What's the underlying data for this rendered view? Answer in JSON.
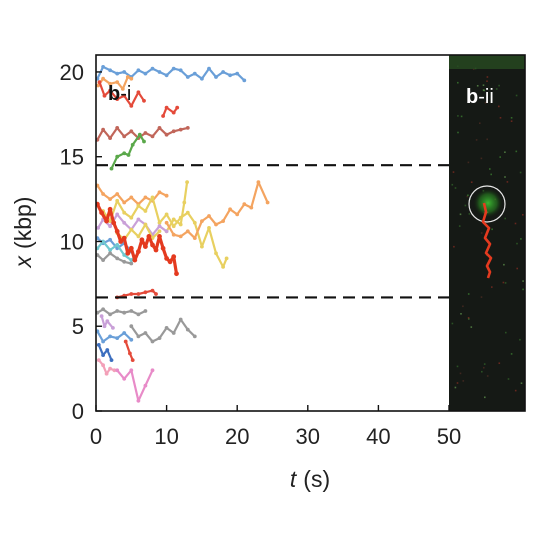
{
  "chart_data": {
    "type": "line",
    "xlabel_var": "t",
    "xlabel_unit": "(s)",
    "ylabel_var": "x",
    "ylabel_unit": "(kbp)",
    "xlim": [
      0,
      50
    ],
    "ylim": [
      0,
      21
    ],
    "x_ticks": [
      "0",
      "10",
      "20",
      "30",
      "40",
      "50"
    ],
    "y_ticks": [
      "0",
      "5",
      "10",
      "15",
      "20"
    ],
    "grid": false,
    "dashed_lines_y": [
      14.5,
      6.7
    ],
    "panels": {
      "left": {
        "bold": "b",
        "rest": "-i"
      },
      "right": {
        "bold": "b",
        "rest": "-ii"
      }
    },
    "series": [
      {
        "color": "#6a9fd8",
        "points": [
          [
            0.2,
            19.6
          ],
          [
            1,
            20.3
          ],
          [
            2,
            20.1
          ],
          [
            3,
            19.9
          ],
          [
            4,
            20.0
          ],
          [
            5,
            19.7
          ],
          [
            6,
            20.1
          ],
          [
            7,
            19.9
          ],
          [
            8,
            20.2
          ],
          [
            9,
            20.0
          ],
          [
            10,
            19.8
          ],
          [
            11,
            20.2
          ],
          [
            12,
            20.1
          ],
          [
            13,
            19.7
          ],
          [
            14,
            19.9
          ],
          [
            15,
            19.6
          ],
          [
            16,
            20.2
          ],
          [
            17,
            19.7
          ],
          [
            18,
            20.0
          ],
          [
            19,
            19.8
          ],
          [
            20,
            19.9
          ],
          [
            21,
            19.5
          ]
        ]
      },
      {
        "color": "#f4a460",
        "points": [
          [
            0.3,
            19.2
          ],
          [
            1,
            19.6
          ],
          [
            2,
            19.3
          ],
          [
            3,
            19.4
          ],
          [
            3.8,
            19.0
          ],
          [
            4.5,
            19.7
          ],
          [
            5,
            19.6
          ]
        ]
      },
      {
        "color": "#e44a3a",
        "points": [
          [
            0.5,
            19.4
          ],
          [
            1.2,
            18.6
          ],
          [
            2,
            18.9
          ],
          [
            3,
            18.4
          ],
          [
            4,
            18.6
          ],
          [
            5,
            18.0
          ],
          [
            6,
            18.8
          ],
          [
            6.8,
            18.3
          ]
        ]
      },
      {
        "color": "#e44a3a",
        "points": [
          [
            9.5,
            17.4
          ],
          [
            10,
            17.9
          ],
          [
            11,
            17.6
          ],
          [
            11.5,
            17.9
          ]
        ]
      },
      {
        "color": "#c1665a",
        "points": [
          [
            0.2,
            16.0
          ],
          [
            1,
            16.6
          ],
          [
            2,
            16.1
          ],
          [
            3,
            16.7
          ],
          [
            4,
            16.2
          ],
          [
            5,
            16.5
          ],
          [
            6,
            16.1
          ],
          [
            7,
            16.4
          ],
          [
            8,
            16.2
          ],
          [
            9,
            16.7
          ],
          [
            10,
            16.3
          ],
          [
            11,
            16.5
          ],
          [
            12,
            16.6
          ],
          [
            13,
            16.7
          ]
        ]
      },
      {
        "color": "#5aa84a",
        "points": [
          [
            2.2,
            14.3
          ],
          [
            3,
            15.0
          ],
          [
            4,
            15.2
          ],
          [
            4.6,
            15.1
          ],
          [
            5.2,
            15.7
          ],
          [
            6.2,
            16.3
          ],
          [
            6.8,
            15.9
          ]
        ]
      },
      {
        "color": "#f4a460",
        "points": [
          [
            0.2,
            13.3
          ],
          [
            1,
            12.8
          ],
          [
            2,
            12.5
          ],
          [
            3,
            12.8
          ],
          [
            4,
            12.3
          ],
          [
            5,
            12.6
          ],
          [
            6,
            12.2
          ],
          [
            7,
            12.6
          ],
          [
            8,
            12.4
          ],
          [
            9,
            12.9
          ],
          [
            10,
            12.7
          ]
        ]
      },
      {
        "color": "#e8d060",
        "points": [
          [
            1,
            11.8
          ],
          [
            2,
            11.2
          ],
          [
            3,
            12.4
          ],
          [
            4,
            11.7
          ],
          [
            5,
            11.4
          ],
          [
            6,
            12.1
          ],
          [
            7,
            11.8
          ],
          [
            8,
            12.6
          ],
          [
            9,
            11.1
          ],
          [
            10,
            11.6
          ],
          [
            11,
            10.9
          ],
          [
            12,
            11.4
          ],
          [
            13,
            11.7
          ],
          [
            14,
            11.1
          ],
          [
            15,
            9.7
          ],
          [
            16,
            10.8
          ],
          [
            17,
            9.3
          ],
          [
            18,
            8.5
          ],
          [
            18.5,
            9.0
          ]
        ]
      },
      {
        "color": "#e8d060",
        "points": [
          [
            10,
            10.6
          ],
          [
            11,
            11.3
          ],
          [
            12,
            11.0
          ],
          [
            12.5,
            12.3
          ],
          [
            12.9,
            13.5
          ]
        ]
      },
      {
        "color": "#f4a460",
        "points": [
          [
            10,
            11.1
          ],
          [
            11,
            10.4
          ],
          [
            12,
            10.3
          ],
          [
            13,
            10.6
          ],
          [
            14,
            10.2
          ],
          [
            15,
            11.2
          ],
          [
            16,
            11.5
          ],
          [
            17,
            11.0
          ],
          [
            18,
            11.2
          ],
          [
            19,
            11.9
          ],
          [
            20,
            11.6
          ],
          [
            21,
            12.2
          ],
          [
            22,
            12.0
          ],
          [
            23,
            13.5
          ],
          [
            24.3,
            12.3
          ]
        ]
      },
      {
        "color": "#c9a0d8",
        "points": [
          [
            0.3,
            10.8
          ],
          [
            1,
            11.3
          ],
          [
            2,
            10.9
          ],
          [
            3,
            11.6
          ],
          [
            4,
            11.1
          ],
          [
            5,
            10.7
          ],
          [
            6,
            11.3
          ],
          [
            7,
            11.0
          ],
          [
            8,
            10.4
          ],
          [
            9,
            10.9
          ],
          [
            10,
            10.6
          ]
        ]
      },
      {
        "color": "#6a9fd8",
        "points": [
          [
            0.2,
            10.2
          ],
          [
            1,
            9.9
          ],
          [
            2,
            10.1
          ],
          [
            3,
            9.6
          ],
          [
            4,
            9.9
          ],
          [
            5,
            9.4
          ]
        ]
      },
      {
        "color": "#70c9d0",
        "points": [
          [
            0.2,
            9.6
          ],
          [
            1,
            10.0
          ],
          [
            2,
            9.5
          ],
          [
            3,
            9.8
          ],
          [
            4,
            9.2
          ],
          [
            5,
            8.9
          ],
          [
            5.5,
            9.1
          ]
        ]
      },
      {
        "color": "#999999",
        "points": [
          [
            0.2,
            9.2
          ],
          [
            1,
            8.9
          ],
          [
            2,
            9.3
          ],
          [
            3,
            9.0
          ],
          [
            4,
            8.8
          ],
          [
            5,
            8.7
          ]
        ]
      },
      {
        "color": "#e8d060",
        "points": [
          [
            3,
            10.5
          ],
          [
            4,
            10.1
          ],
          [
            5,
            10.7
          ],
          [
            6,
            10.3
          ],
          [
            7,
            11.0
          ],
          [
            8,
            10.2
          ],
          [
            9,
            10.6
          ]
        ]
      },
      {
        "color": "#e43a1f",
        "width": 3.2,
        "points": [
          [
            0.2,
            12.2
          ],
          [
            0.8,
            11.7
          ],
          [
            1.5,
            11.2
          ],
          [
            2,
            11.9
          ],
          [
            2.5,
            11.1
          ],
          [
            3,
            10.6
          ],
          [
            3.5,
            10.0
          ],
          [
            4,
            10.2
          ],
          [
            4.5,
            9.3
          ],
          [
            5,
            9.6
          ],
          [
            5.5,
            8.9
          ],
          [
            6,
            9.4
          ],
          [
            6.5,
            10.1
          ],
          [
            7,
            9.7
          ],
          [
            7.5,
            10.3
          ],
          [
            8,
            9.8
          ],
          [
            8.5,
            9.5
          ],
          [
            9,
            10.3
          ],
          [
            9.5,
            9.6
          ],
          [
            10,
            9.0
          ],
          [
            10.5,
            8.8
          ],
          [
            11,
            9.1
          ],
          [
            11.4,
            8.1
          ]
        ]
      },
      {
        "color": "#e44a3a",
        "points": [
          [
            3,
            6.7
          ],
          [
            4,
            6.8
          ],
          [
            5,
            6.9
          ],
          [
            6,
            6.9
          ],
          [
            7,
            7.0
          ],
          [
            8,
            7.1
          ],
          [
            8.5,
            6.9
          ]
        ]
      },
      {
        "color": "#999999",
        "points": [
          [
            0.2,
            5.8
          ],
          [
            1,
            6.0
          ],
          [
            2,
            5.7
          ],
          [
            3,
            5.9
          ],
          [
            4,
            5.8
          ],
          [
            5,
            5.9
          ],
          [
            6,
            5.7
          ],
          [
            7,
            5.9
          ]
        ]
      },
      {
        "color": "#999999",
        "points": [
          [
            5,
            5.0
          ],
          [
            6,
            4.4
          ],
          [
            7,
            4.6
          ],
          [
            8,
            4.1
          ],
          [
            9,
            4.3
          ],
          [
            10,
            4.9
          ],
          [
            11,
            4.6
          ],
          [
            12,
            5.4
          ],
          [
            13,
            4.8
          ],
          [
            14,
            4.4
          ]
        ]
      },
      {
        "color": "#6a9fd8",
        "points": [
          [
            0.2,
            4.7
          ],
          [
            1,
            4.1
          ],
          [
            2,
            4.4
          ],
          [
            3,
            4.3
          ],
          [
            4,
            4.6
          ],
          [
            5,
            4.2
          ]
        ]
      },
      {
        "color": "#c9a0d8",
        "points": [
          [
            0.8,
            5.6
          ],
          [
            1.2,
            5.0
          ],
          [
            1.6,
            5.3
          ],
          [
            2.4,
            4.9
          ]
        ]
      },
      {
        "color": "#e44a3a",
        "points": [
          [
            4.2,
            4.1
          ],
          [
            4.8,
            3.4
          ],
          [
            5.2,
            3.0
          ]
        ]
      },
      {
        "color": "#3d6fbf",
        "points": [
          [
            0.4,
            3.9
          ],
          [
            1,
            3.3
          ],
          [
            1.6,
            3.6
          ],
          [
            2.2,
            3.0
          ]
        ]
      },
      {
        "color": "#f3a0b8",
        "points": [
          [
            0.4,
            3.0
          ],
          [
            1,
            2.7
          ],
          [
            1.5,
            2.2
          ],
          [
            2,
            2.5
          ],
          [
            2.6,
            2.4
          ]
        ]
      },
      {
        "color": "#e88bc8",
        "points": [
          [
            3,
            2.4
          ],
          [
            4,
            1.9
          ],
          [
            5,
            2.4
          ],
          [
            6,
            0.6
          ],
          [
            7,
            1.5
          ],
          [
            8,
            2.4
          ]
        ]
      }
    ]
  }
}
